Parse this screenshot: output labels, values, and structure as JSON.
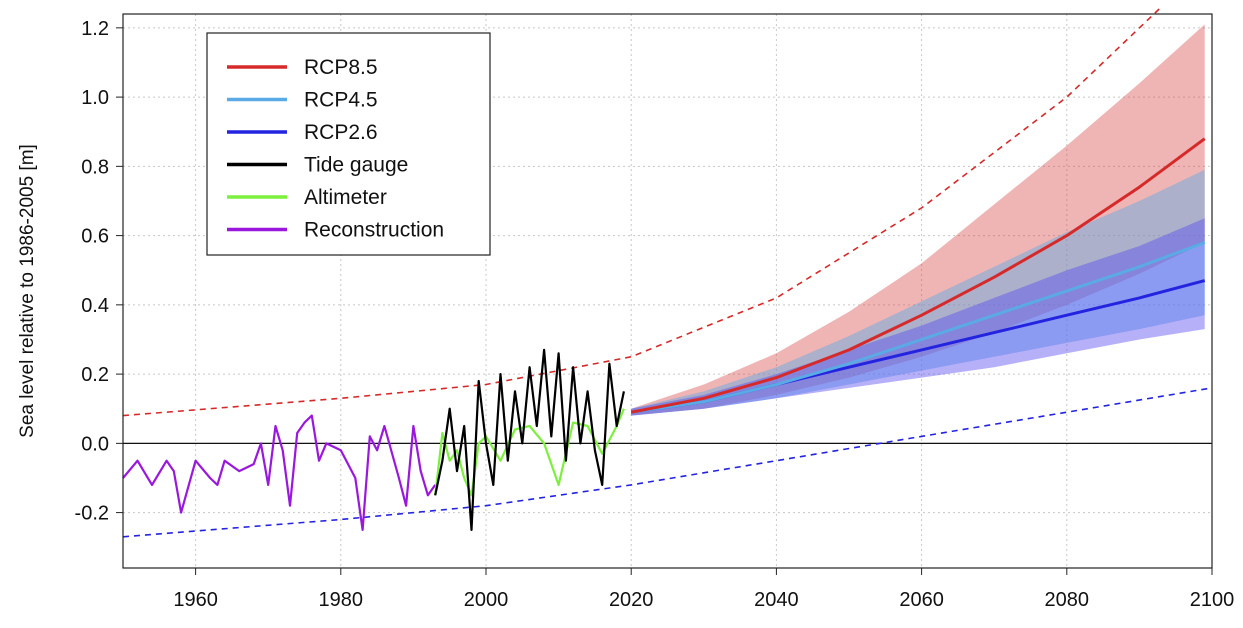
{
  "chart_data": {
    "type": "line",
    "title": "",
    "xlabel": "",
    "ylabel": "Sea level relative to 1986-2005 [m]",
    "xlim": [
      1950,
      2100
    ],
    "ylim": [
      -0.36,
      1.24
    ],
    "x_ticks": [
      "1960",
      "1980",
      "2000",
      "2020",
      "2040",
      "2060",
      "2080",
      "2100"
    ],
    "y_ticks": [
      "-0.2",
      "0.0",
      "0.2",
      "0.4",
      "0.6",
      "0.8",
      "1.0",
      "1.2"
    ],
    "grid": true,
    "legend_position": "top-left",
    "series": [
      {
        "name": "RCP8.5",
        "color": "#d62a2a",
        "x": [
          2020,
          2030,
          2040,
          2050,
          2060,
          2070,
          2080,
          2090,
          2099
        ],
        "y": [
          0.09,
          0.13,
          0.19,
          0.27,
          0.37,
          0.48,
          0.6,
          0.74,
          0.88
        ],
        "band_low": [
          0.08,
          0.1,
          0.14,
          0.19,
          0.25,
          0.32,
          0.4,
          0.49,
          0.58
        ],
        "band_high": [
          0.1,
          0.17,
          0.26,
          0.38,
          0.52,
          0.69,
          0.86,
          1.04,
          1.21
        ]
      },
      {
        "name": "RCP4.5",
        "color": "#5aaae6",
        "x": [
          2020,
          2030,
          2040,
          2050,
          2060,
          2070,
          2080,
          2090,
          2099
        ],
        "y": [
          0.09,
          0.12,
          0.17,
          0.23,
          0.3,
          0.37,
          0.44,
          0.51,
          0.58
        ],
        "band_low": [
          0.08,
          0.1,
          0.13,
          0.17,
          0.21,
          0.25,
          0.29,
          0.33,
          0.37
        ],
        "band_high": [
          0.1,
          0.15,
          0.22,
          0.31,
          0.41,
          0.51,
          0.61,
          0.7,
          0.79
        ]
      },
      {
        "name": "RCP2.6",
        "color": "#2424e0",
        "x": [
          2020,
          2030,
          2040,
          2050,
          2060,
          2070,
          2080,
          2090,
          2099
        ],
        "y": [
          0.09,
          0.12,
          0.17,
          0.22,
          0.27,
          0.32,
          0.37,
          0.42,
          0.47
        ],
        "band_low": [
          0.08,
          0.1,
          0.13,
          0.16,
          0.19,
          0.22,
          0.26,
          0.3,
          0.33
        ],
        "band_high": [
          0.1,
          0.14,
          0.2,
          0.27,
          0.34,
          0.42,
          0.5,
          0.57,
          0.65
        ]
      },
      {
        "name": "Tide gauge",
        "color": "#000000",
        "x": [
          1993,
          1994,
          1995,
          1996,
          1997,
          1998,
          1999,
          2000,
          2001,
          2002,
          2003,
          2004,
          2005,
          2006,
          2007,
          2008,
          2009,
          2010,
          2011,
          2012,
          2013,
          2014,
          2015,
          2016,
          2017,
          2018,
          2019
        ],
        "y": [
          -0.15,
          -0.05,
          0.1,
          -0.08,
          0.05,
          -0.25,
          0.18,
          0.0,
          -0.12,
          0.2,
          -0.05,
          0.15,
          0.0,
          0.22,
          0.05,
          0.27,
          0.02,
          0.26,
          -0.05,
          0.22,
          0.0,
          0.15,
          -0.02,
          -0.12,
          0.23,
          0.05,
          0.15
        ]
      },
      {
        "name": "Altimeter",
        "color": "#7cf03c",
        "x": [
          1993,
          1994,
          1995,
          1996,
          1997,
          1998,
          1999,
          2000,
          2002,
          2004,
          2006,
          2008,
          2010,
          2012,
          2014,
          2016,
          2018,
          2019
        ],
        "y": [
          -0.15,
          0.03,
          -0.05,
          -0.02,
          -0.1,
          -0.15,
          0.0,
          0.02,
          -0.05,
          0.04,
          0.05,
          0.0,
          -0.12,
          0.06,
          0.05,
          -0.03,
          0.05,
          0.1
        ]
      },
      {
        "name": "Reconstruction",
        "color": "#9a18dd",
        "x": [
          1950,
          1952,
          1954,
          1956,
          1957,
          1958,
          1960,
          1962,
          1963,
          1964,
          1966,
          1968,
          1969,
          1970,
          1971,
          1972,
          1973,
          1974,
          1975,
          1976,
          1977,
          1978,
          1980,
          1982,
          1983,
          1984,
          1985,
          1986,
          1988,
          1989,
          1990,
          1991,
          1992,
          1993
        ],
        "y": [
          -0.1,
          -0.05,
          -0.12,
          -0.05,
          -0.08,
          -0.2,
          -0.05,
          -0.1,
          -0.12,
          -0.05,
          -0.08,
          -0.06,
          0.0,
          -0.12,
          0.05,
          -0.02,
          -0.18,
          0.03,
          0.06,
          0.08,
          -0.05,
          0.0,
          -0.02,
          -0.1,
          -0.25,
          0.02,
          -0.02,
          0.05,
          -0.1,
          -0.18,
          0.05,
          -0.08,
          -0.15,
          -0.12
        ]
      }
    ],
    "dashed_bounds": [
      {
        "color": "#d62a2a",
        "x": [
          1950,
          1980,
          2000,
          2020,
          2040,
          2060,
          2080,
          2093
        ],
        "y": [
          0.08,
          0.13,
          0.17,
          0.25,
          0.42,
          0.68,
          1.0,
          1.26
        ]
      },
      {
        "color": "#2424e0",
        "x": [
          1950,
          1980,
          2000,
          2020,
          2040,
          2060,
          2080,
          2100
        ],
        "y": [
          -0.27,
          -0.22,
          -0.18,
          -0.12,
          -0.05,
          0.02,
          0.09,
          0.16
        ]
      }
    ]
  }
}
